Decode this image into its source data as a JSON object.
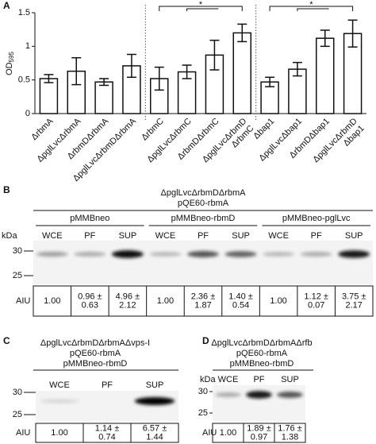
{
  "chart_data": {
    "type": "bar",
    "panel": "A",
    "y_label": "OD",
    "y_label_sub": "595",
    "categories": [
      "ΔrbmA",
      "ΔpglLvcΔrbmA",
      "ΔrbmDΔrbmA",
      "ΔpglLvcΔrbmDΔrbmA",
      "ΔrbmC",
      "ΔpglLvcΔrbmC",
      "ΔrbmDΔrbmC",
      [
        "ΔpglLvcΔrbmD",
        "ΔrbmC"
      ],
      "Δbap1",
      "ΔpglLvcΔbap1",
      "ΔrbmDΔbap1",
      [
        "ΔpglLvcΔrbmD",
        "Δbap1"
      ]
    ],
    "values": [
      0.52,
      0.63,
      0.47,
      0.71,
      0.52,
      0.62,
      0.87,
      1.2,
      0.47,
      0.66,
      1.12,
      1.19
    ],
    "errors": [
      0.06,
      0.2,
      0.05,
      0.17,
      0.17,
      0.1,
      0.22,
      0.13,
      0.07,
      0.1,
      0.12,
      0.2
    ],
    "color": "#ffffff",
    "ylim": [
      0,
      1.5
    ],
    "yticks": [
      0,
      0.5,
      1,
      1.5
    ],
    "annotations": [
      "*",
      "*"
    ]
  },
  "blots": [
    {
      "panel": "B",
      "header": [
        "ΔpglLvcΔrbmDΔrbmA",
        "pQE60-rbmA"
      ],
      "groups": [
        "pMMBneo",
        "pMMBneo-rbmD",
        "pMMBneo-pglLvc"
      ],
      "lanes": [
        "WCE",
        "PF",
        "SUP",
        "WCE",
        "PF",
        "SUP",
        "WCE",
        "PF",
        "SUP"
      ],
      "kda": "kDa",
      "markers": [
        30,
        25
      ],
      "aiu_label": "AIU",
      "aiu": [
        "1.00",
        [
          "0.96 ±",
          "0.63"
        ],
        [
          "4.96 ±",
          "2.12"
        ],
        "1.00",
        [
          "2.36 ±",
          "1.87"
        ],
        [
          "1.40 ±",
          "0.54"
        ],
        "1.00",
        [
          "1.12 ±",
          "0.07"
        ],
        [
          "3.75 ±",
          "2.17"
        ]
      ]
    },
    {
      "panel": "C",
      "header": [
        "ΔpglLvcΔrbmDΔrbmAΔvps-I",
        "pQE60-rbmA",
        "pMMBneo-rbmD"
      ],
      "lanes": [
        "WCE",
        "PF",
        "SUP"
      ],
      "markers": [
        30,
        25
      ],
      "aiu_label": "AIU",
      "aiu": [
        "1.00",
        [
          "1.14 ±",
          "0.74"
        ],
        [
          "6.57 ±",
          "1.44"
        ]
      ]
    },
    {
      "panel": "D",
      "header": [
        "ΔpglLvcΔrbmDΔrbmAΔrfb",
        "pQE60-rbmA",
        "pMMBneo-rbmD"
      ],
      "lanes": [
        "WCE",
        "PF",
        "SUP"
      ],
      "kda": "kDa",
      "markers": [
        30,
        25
      ],
      "aiu_label": "AIU",
      "aiu": [
        "1.00",
        [
          "1.89 ±",
          "0.97"
        ],
        [
          "1.76 ±",
          "1.38"
        ]
      ]
    }
  ]
}
